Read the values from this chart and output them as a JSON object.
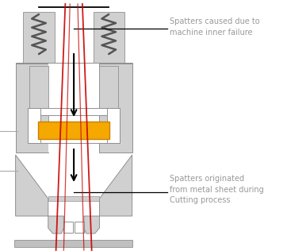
{
  "bg_color": "#ffffff",
  "gray_light": "#d0d0d0",
  "gray_mid": "#b8b8b8",
  "gray_dark": "#909090",
  "orange": "#f5a800",
  "red_line": "#cc0000",
  "black": "#000000",
  "annotation_color": "#aaaaaa",
  "text_color": "#999999",
  "text1": "Spatters caused due to\nmachine inner failure",
  "text2": "Spatters originated\nfrom metal sheet during\nCutting process",
  "figsize": [
    3.62,
    3.16
  ],
  "dpi": 100
}
